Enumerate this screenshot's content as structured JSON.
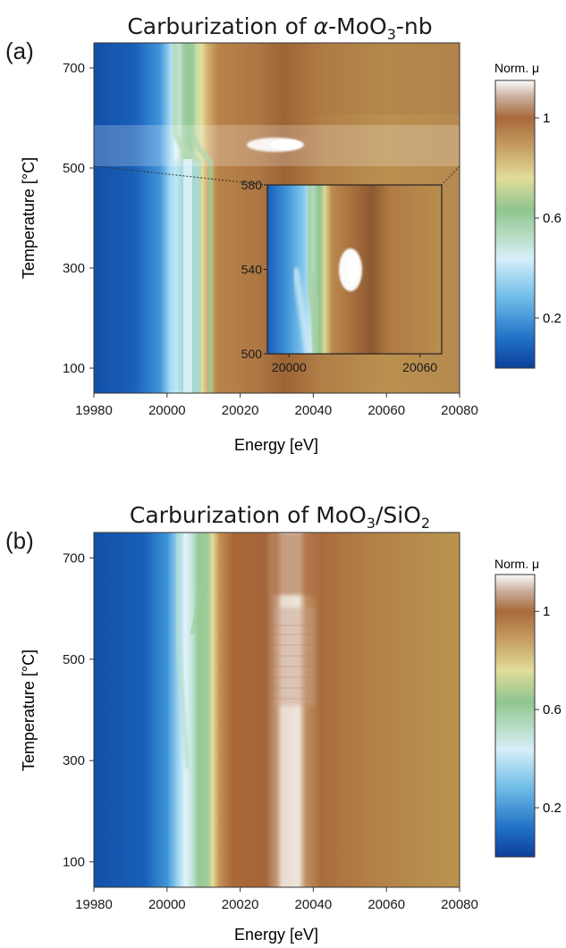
{
  "figure": {
    "panels": [
      {
        "id": "a",
        "panel_label": "(a)",
        "title_prefix": "Carburization of ",
        "title_symbol": "α",
        "title_main": "-MoO",
        "title_sub": "3",
        "title_suffix": "-nb",
        "xlabel": "Energy [eV]",
        "ylabel": "Temperature [°C]",
        "colorbar_label": "Norm. μ"
      },
      {
        "id": "b",
        "panel_label": "(b)",
        "title_prefix": "Carburization of ",
        "title_symbol": "",
        "title_main": "MoO",
        "title_sub": "3",
        "title_suffix": "/SiO",
        "title_sub2": "2",
        "xlabel": "Energy [eV]",
        "ylabel": "Temperature [°C]",
        "colorbar_label": "Norm. μ"
      }
    ]
  },
  "chart_data": [
    {
      "type": "heatmap",
      "title": "Carburization of α-MoO3-nb",
      "xlabel": "Energy [eV]",
      "ylabel": "Temperature [°C]",
      "xlim": [
        19980,
        20080
      ],
      "ylim": [
        50,
        750
      ],
      "x_ticks": [
        19980,
        20000,
        20020,
        20040,
        20060,
        20080
      ],
      "y_ticks": [
        100,
        300,
        500,
        700
      ],
      "colorbar": {
        "label": "Norm. μ",
        "range": [
          0,
          1.15
        ],
        "ticks": [
          0.2,
          0.6,
          1
        ]
      },
      "colormap": [
        {
          "value": 0.0,
          "color": "#0d3f9a"
        },
        {
          "value": 0.12,
          "color": "#1f6fc6"
        },
        {
          "value": 0.3,
          "color": "#73bfe9"
        },
        {
          "value": 0.45,
          "color": "#d6effa"
        },
        {
          "value": 0.55,
          "color": "#b7dcc3"
        },
        {
          "value": 0.65,
          "color": "#8fc58f"
        },
        {
          "value": 0.78,
          "color": "#e1dd9a"
        },
        {
          "value": 0.9,
          "color": "#c59d62"
        },
        {
          "value": 1.0,
          "color": "#a8693b"
        },
        {
          "value": 1.08,
          "color": "#c9ad9b"
        },
        {
          "value": 1.15,
          "color": "#fbfbfb"
        }
      ],
      "features": {
        "edge_energy_low_T": 20005,
        "edge_shift_temperature": [
          500,
          580
        ],
        "edge_energy_high_T": 20012,
        "white_line_hotspot": {
          "energy": 20030,
          "temperature": 545,
          "value": 1.15
        },
        "highlight_band": [
          500,
          580
        ]
      },
      "inset": {
        "xlim": [
          19990,
          20070
        ],
        "ylim": [
          500,
          580
        ],
        "x_ticks": [
          20000,
          20060
        ],
        "y_ticks": [
          500,
          540,
          580
        ]
      }
    },
    {
      "type": "heatmap",
      "title": "Carburization of MoO3/SiO2",
      "xlabel": "Energy [eV]",
      "ylabel": "Temperature [°C]",
      "xlim": [
        19980,
        20080
      ],
      "ylim": [
        50,
        750
      ],
      "x_ticks": [
        19980,
        20000,
        20020,
        20040,
        20060,
        20080
      ],
      "y_ticks": [
        100,
        300,
        500,
        700
      ],
      "colorbar": {
        "label": "Norm. μ",
        "range": [
          0,
          1.15
        ],
        "ticks": [
          0.2,
          0.6,
          1
        ]
      },
      "features": {
        "edge_energy_low_T": 20008,
        "edge_energy_high_T": 20012,
        "white_line_energy": 20037,
        "white_line_max_value": 1.15,
        "white_line_fades_above_temperature": 600
      }
    }
  ]
}
